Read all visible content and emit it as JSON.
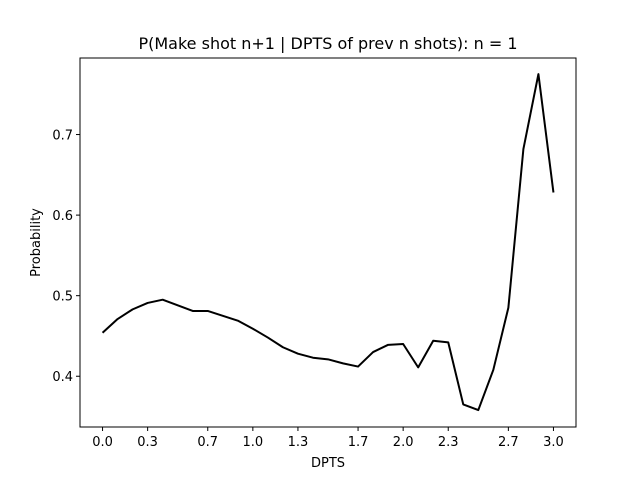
{
  "chart_data": {
    "type": "line",
    "title": "P(Make shot n+1 | DPTS of prev n shots): n = 1",
    "xlabel": "DPTS",
    "ylabel": "Probability",
    "xlim": [
      -0.15,
      3.15
    ],
    "ylim": [
      0.337,
      0.795
    ],
    "x_ticks": [
      0.0,
      0.3,
      0.7,
      1.0,
      1.3,
      1.7,
      2.0,
      2.3,
      2.7,
      3.0
    ],
    "x_tick_labels": [
      "0.0",
      "0.3",
      "0.7",
      "1.0",
      "1.3",
      "1.7",
      "2.0",
      "2.3",
      "2.7",
      "3.0"
    ],
    "y_ticks": [
      0.4,
      0.5,
      0.6,
      0.7
    ],
    "y_tick_labels": [
      "0.4",
      "0.5",
      "0.6",
      "0.7"
    ],
    "grid": false,
    "series": [
      {
        "color": "#000000",
        "x": [
          0.0,
          0.1,
          0.2,
          0.3,
          0.4,
          0.5,
          0.6,
          0.7,
          0.8,
          0.9,
          1.0,
          1.1,
          1.2,
          1.3,
          1.4,
          1.5,
          1.6,
          1.7,
          1.8,
          1.9,
          2.0,
          2.1,
          2.2,
          2.3,
          2.4,
          2.5,
          2.6,
          2.7,
          2.8,
          2.9,
          3.0
        ],
        "y": [
          0.454,
          0.471,
          0.483,
          0.491,
          0.495,
          0.488,
          0.481,
          0.481,
          0.475,
          0.469,
          0.459,
          0.448,
          0.436,
          0.428,
          0.423,
          0.421,
          0.416,
          0.412,
          0.43,
          0.439,
          0.44,
          0.411,
          0.444,
          0.442,
          0.365,
          0.358,
          0.408,
          0.485,
          0.682,
          0.775,
          0.628
        ]
      }
    ]
  }
}
